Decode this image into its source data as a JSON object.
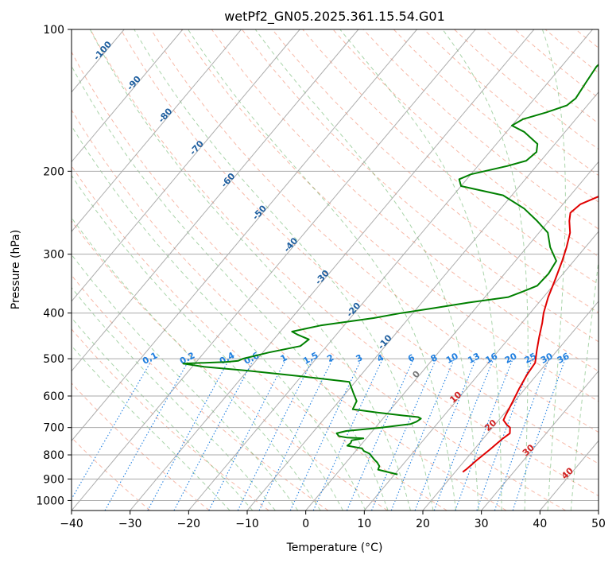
{
  "chart_data": {
    "type": "skew-t",
    "title": "wetPf2_GN05.2025.361.15.54.G01",
    "xlabel": "Temperature (°C)",
    "ylabel": "Pressure (hPa)",
    "xlim": [
      -40,
      50
    ],
    "ylim": [
      1050,
      100
    ],
    "y_scale": "log",
    "grid": true,
    "x_ticks": [
      -40,
      -30,
      -20,
      -10,
      0,
      10,
      20,
      30,
      40,
      50
    ],
    "y_ticks": [
      100,
      200,
      300,
      400,
      500,
      600,
      700,
      800,
      900,
      1000
    ],
    "colors": {
      "temperature": "#e00000",
      "dewpoint": "#008000",
      "dry_adiabat": "#f08060",
      "moist_adiabat": "#40a040",
      "mixing_ratio": "#1f7fe0",
      "isotherm": "#999999",
      "dry_label": "#1f5f9f",
      "moist_label": "#d02020"
    },
    "series": [
      {
        "name": "",
        "kind": "temperature",
        "points": [
          [
            870,
            21.3
          ],
          [
            860,
            21.5
          ],
          [
            820,
            22.0
          ],
          [
            780,
            22.7
          ],
          [
            740,
            23.3
          ],
          [
            720,
            23.8
          ],
          [
            700,
            23.0
          ],
          [
            690,
            22.0
          ],
          [
            675,
            20.8
          ],
          [
            660,
            20.5
          ],
          [
            620,
            19.8
          ],
          [
            580,
            19.0
          ],
          [
            540,
            18.3
          ],
          [
            510,
            18.0
          ],
          [
            480,
            16.5
          ],
          [
            450,
            15.0
          ],
          [
            420,
            13.5
          ],
          [
            400,
            12.3
          ],
          [
            370,
            10.8
          ],
          [
            340,
            9.5
          ],
          [
            310,
            8.0
          ],
          [
            290,
            6.8
          ],
          [
            270,
            5.3
          ],
          [
            255,
            3.5
          ],
          [
            245,
            2.5
          ],
          [
            235,
            3.0
          ],
          [
            225,
            5.3
          ],
          [
            210,
            8.0
          ],
          [
            195,
            8.6
          ],
          [
            175,
            8.3
          ],
          [
            158,
            7.0
          ],
          [
            140,
            5.3
          ],
          [
            125,
            4.1
          ],
          [
            112,
            4.0
          ],
          [
            100,
            4.3
          ]
        ]
      },
      {
        "name": "",
        "kind": "dewpoint",
        "points": [
          [
            880,
            10.5
          ],
          [
            860,
            6.5
          ],
          [
            845,
            6.2
          ],
          [
            830,
            5.3
          ],
          [
            820,
            4.5
          ],
          [
            795,
            2.7
          ],
          [
            785,
            1.4
          ],
          [
            775,
            0.7
          ],
          [
            765,
            -2.2
          ],
          [
            755,
            -2.0
          ],
          [
            745,
            -2.2
          ],
          [
            738,
            -0.5
          ],
          [
            735,
            -3.5
          ],
          [
            730,
            -5.0
          ],
          [
            720,
            -5.8
          ],
          [
            712,
            -4.5
          ],
          [
            700,
            1.0
          ],
          [
            688,
            5.5
          ],
          [
            680,
            6.2
          ],
          [
            670,
            6.5
          ],
          [
            665,
            5.8
          ],
          [
            658,
            2.0
          ],
          [
            650,
            -2.0
          ],
          [
            640,
            -6.5
          ],
          [
            615,
            -7.0
          ],
          [
            590,
            -8.8
          ],
          [
            560,
            -11.0
          ],
          [
            545,
            -20.0
          ],
          [
            530,
            -30.0
          ],
          [
            520,
            -38.0
          ],
          [
            512,
            -42.0
          ],
          [
            508,
            -35.0
          ],
          [
            505,
            -33.0
          ],
          [
            500,
            -32.5
          ],
          [
            485,
            -29.0
          ],
          [
            470,
            -24.5
          ],
          [
            455,
            -24.0
          ],
          [
            445,
            -26.5
          ],
          [
            438,
            -28.0
          ],
          [
            425,
            -24.0
          ],
          [
            410,
            -16.0
          ],
          [
            400,
            -12.0
          ],
          [
            390,
            -7.0
          ],
          [
            380,
            -2.0
          ],
          [
            370,
            4.0
          ],
          [
            360,
            5.7
          ],
          [
            350,
            7.3
          ],
          [
            330,
            7.5
          ],
          [
            310,
            7.0
          ],
          [
            290,
            4.0
          ],
          [
            270,
            1.5
          ],
          [
            255,
            -2.0
          ],
          [
            240,
            -6.0
          ],
          [
            225,
            -11.5
          ],
          [
            215,
            -20.0
          ],
          [
            208,
            -21.3
          ],
          [
            203,
            -20.0
          ],
          [
            195,
            -15.0
          ],
          [
            190,
            -12.5
          ],
          [
            182,
            -12.0
          ],
          [
            175,
            -13.0
          ],
          [
            165,
            -17.0
          ],
          [
            160,
            -20.0
          ],
          [
            155,
            -19.0
          ],
          [
            150,
            -16.0
          ],
          [
            145,
            -13.5
          ],
          [
            140,
            -13.0
          ],
          [
            130,
            -13.5
          ],
          [
            120,
            -14.0
          ],
          [
            110,
            -13.3
          ],
          [
            100,
            -12.5
          ]
        ]
      }
    ],
    "dry_adiabat_labels": [
      -100,
      -90,
      -80,
      -70,
      -60,
      -50,
      -40,
      -30,
      -20,
      -10,
      0
    ],
    "moist_adiabat_labels": [
      10,
      20,
      30,
      40
    ],
    "mixing_ratio_labels": [
      "0.1",
      "0.2",
      "0.4",
      "0.6",
      "1",
      "1.5",
      "2",
      "3",
      "4",
      "6",
      "8",
      "10",
      "13",
      "16",
      "20",
      "25",
      "30",
      "36"
    ]
  }
}
